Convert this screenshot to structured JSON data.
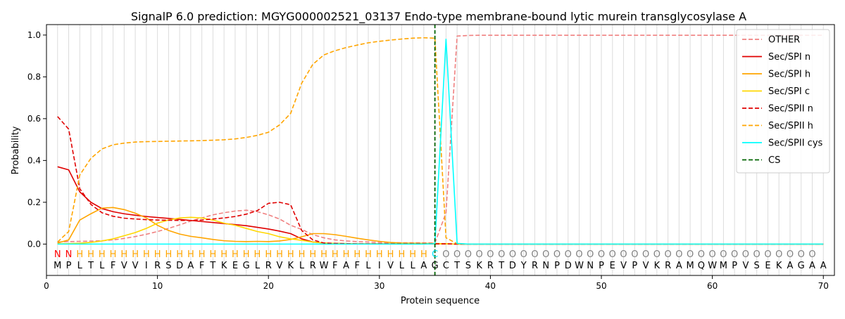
{
  "chart_data": {
    "type": "line",
    "title": "SignalP 6.0 prediction: MGYG000002521_03137 Endo-type membrane-bound lytic murein transglycosylase A",
    "xlabel": "Protein sequence",
    "ylabel": "Probability",
    "xlim": [
      0,
      71
    ],
    "ylim": [
      -0.15,
      1.05
    ],
    "x_ticks": [
      0,
      10,
      20,
      30,
      40,
      50,
      60,
      70
    ],
    "y_ticks": [
      0.0,
      0.2,
      0.4,
      0.6,
      0.8,
      1.0
    ],
    "legend_position": "top-right",
    "vertical_gridlines": "light grey line at each residue position",
    "sequence": "MPLTLFVVIRSDAFTKEGLRVKLRWFAFLIVLLAGCTSKRTDYRNPDWNPEVPVKRAMQWMPVSEKAGAA",
    "region_labels": "NNHHHHHHHHHHHHHHHHHHHHHHHHHHHHHHHHCOOOOOOOOOOOOOOOOOOOOOOOOOOOOOOOOOO",
    "region_label_colors": {
      "N": "#ff0000",
      "H": "#ffa500",
      "C": "#00e5ff",
      "O": "#808080"
    },
    "cleavage_site": 35,
    "series": [
      {
        "name": "OTHER",
        "color": "#f08080",
        "dash": "dashed",
        "values": [
          0.01,
          0.012,
          0.013,
          0.014,
          0.016,
          0.02,
          0.027,
          0.036,
          0.047,
          0.06,
          0.075,
          0.092,
          0.11,
          0.125,
          0.14,
          0.15,
          0.158,
          0.162,
          0.155,
          0.14,
          0.12,
          0.09,
          0.07,
          0.045,
          0.03,
          0.02,
          0.015,
          0.012,
          0.01,
          0.008,
          0.007,
          0.006,
          0.006,
          0.006,
          0.005,
          0.15,
          0.995,
          0.998,
          0.999,
          0.999,
          0.999,
          0.999,
          0.999,
          0.999,
          0.999,
          0.999,
          0.999,
          0.999,
          0.999,
          0.999,
          0.999,
          0.999,
          0.999,
          0.999,
          0.999,
          0.999,
          0.999,
          0.999,
          0.999,
          0.999,
          0.999,
          0.999,
          0.999,
          0.999,
          0.999,
          0.999,
          0.999,
          0.999,
          0.999,
          0.999
        ]
      },
      {
        "name": "Sec/SPI n",
        "color": "#e00000",
        "dash": "solid",
        "values": [
          0.37,
          0.355,
          0.25,
          0.2,
          0.17,
          0.155,
          0.145,
          0.138,
          0.132,
          0.127,
          0.123,
          0.118,
          0.113,
          0.108,
          0.103,
          0.098,
          0.093,
          0.088,
          0.08,
          0.072,
          0.062,
          0.05,
          0.025,
          0.01,
          0.005,
          0.003,
          0.002,
          0.001,
          0.001,
          0.001,
          0.001,
          0.001,
          0.001,
          0.001,
          0.001,
          0.001,
          0.0,
          0.0,
          0.0,
          0.0,
          0.0,
          0.0,
          0.0,
          0.0,
          0.0,
          0.0,
          0.0,
          0.0,
          0.0,
          0.0,
          0.0,
          0.0,
          0.0,
          0.0,
          0.0,
          0.0,
          0.0,
          0.0,
          0.0,
          0.0,
          0.0,
          0.0,
          0.0,
          0.0,
          0.0,
          0.0,
          0.0,
          0.0,
          0.0,
          0.0
        ]
      },
      {
        "name": "Sec/SPI h",
        "color": "#ffa500",
        "dash": "solid",
        "values": [
          0.005,
          0.02,
          0.115,
          0.145,
          0.172,
          0.175,
          0.165,
          0.148,
          0.125,
          0.09,
          0.065,
          0.048,
          0.037,
          0.03,
          0.022,
          0.016,
          0.013,
          0.012,
          0.013,
          0.012,
          0.015,
          0.022,
          0.035,
          0.05,
          0.05,
          0.045,
          0.037,
          0.028,
          0.02,
          0.013,
          0.008,
          0.005,
          0.004,
          0.003,
          0.003,
          0.001,
          0.0,
          0.0,
          0.0,
          0.0,
          0.0,
          0.0,
          0.0,
          0.0,
          0.0,
          0.0,
          0.0,
          0.0,
          0.0,
          0.0,
          0.0,
          0.0,
          0.0,
          0.0,
          0.0,
          0.0,
          0.0,
          0.0,
          0.0,
          0.0,
          0.0,
          0.0,
          0.0,
          0.0,
          0.0,
          0.0,
          0.0,
          0.0,
          0.0,
          0.0
        ]
      },
      {
        "name": "Sec/SPI c",
        "color": "#ffd700",
        "dash": "solid",
        "values": [
          0.001,
          0.002,
          0.004,
          0.008,
          0.015,
          0.025,
          0.04,
          0.055,
          0.075,
          0.1,
          0.115,
          0.125,
          0.128,
          0.125,
          0.115,
          0.1,
          0.09,
          0.075,
          0.06,
          0.05,
          0.035,
          0.025,
          0.018,
          0.01,
          0.005,
          0.003,
          0.002,
          0.001,
          0.001,
          0.001,
          0.001,
          0.001,
          0.001,
          0.001,
          0.001,
          0.001,
          0.0,
          0.0,
          0.0,
          0.0,
          0.0,
          0.0,
          0.0,
          0.0,
          0.0,
          0.0,
          0.0,
          0.0,
          0.0,
          0.0,
          0.0,
          0.0,
          0.0,
          0.0,
          0.0,
          0.0,
          0.0,
          0.0,
          0.0,
          0.0,
          0.0,
          0.0,
          0.0,
          0.0,
          0.0,
          0.0,
          0.0,
          0.0,
          0.0,
          0.0
        ]
      },
      {
        "name": "Sec/SPII n",
        "color": "#e00000",
        "dash": "dashed",
        "values": [
          0.61,
          0.55,
          0.265,
          0.19,
          0.15,
          0.133,
          0.124,
          0.12,
          0.117,
          0.115,
          0.114,
          0.113,
          0.113,
          0.115,
          0.12,
          0.125,
          0.132,
          0.143,
          0.16,
          0.195,
          0.2,
          0.188,
          0.065,
          0.02,
          0.005,
          0.003,
          0.002,
          0.001,
          0.001,
          0.001,
          0.001,
          0.001,
          0.001,
          0.001,
          0.001,
          0.001,
          0.0,
          0.0,
          0.0,
          0.0,
          0.0,
          0.0,
          0.0,
          0.0,
          0.0,
          0.0,
          0.0,
          0.0,
          0.0,
          0.0,
          0.0,
          0.0,
          0.0,
          0.0,
          0.0,
          0.0,
          0.0,
          0.0,
          0.0,
          0.0,
          0.0,
          0.0,
          0.0,
          0.0,
          0.0,
          0.0,
          0.0,
          0.0,
          0.0,
          0.0
        ]
      },
      {
        "name": "Sec/SPII h",
        "color": "#ffa500",
        "dash": "dashed",
        "values": [
          0.01,
          0.06,
          0.33,
          0.41,
          0.455,
          0.475,
          0.483,
          0.488,
          0.49,
          0.491,
          0.492,
          0.493,
          0.494,
          0.495,
          0.497,
          0.499,
          0.503,
          0.51,
          0.52,
          0.535,
          0.57,
          0.625,
          0.77,
          0.86,
          0.905,
          0.925,
          0.94,
          0.952,
          0.963,
          0.97,
          0.976,
          0.981,
          0.985,
          0.987,
          0.985,
          0.03,
          0.002,
          0.0,
          0.0,
          0.0,
          0.0,
          0.0,
          0.0,
          0.0,
          0.0,
          0.0,
          0.0,
          0.0,
          0.0,
          0.0,
          0.0,
          0.0,
          0.0,
          0.0,
          0.0,
          0.0,
          0.0,
          0.0,
          0.0,
          0.0,
          0.0,
          0.0,
          0.0,
          0.0,
          0.0,
          0.0,
          0.0,
          0.0,
          0.0,
          0.0
        ]
      },
      {
        "name": "Sec/SPII cys",
        "color": "#00ffff",
        "dash": "solid",
        "values": [
          0.0,
          0.0,
          0.0,
          0.0,
          0.0,
          0.0,
          0.0,
          0.0,
          0.0,
          0.0,
          0.0,
          0.0,
          0.0,
          0.0,
          0.0,
          0.0,
          0.0,
          0.0,
          0.0,
          0.0,
          0.0,
          0.0,
          0.0,
          0.0,
          0.0,
          0.0,
          0.0,
          0.0,
          0.0,
          0.0,
          0.0,
          0.0,
          0.0,
          0.0,
          0.002,
          0.98,
          0.003,
          0.0,
          0.0,
          0.0,
          0.0,
          0.0,
          0.0,
          0.0,
          0.0,
          0.0,
          0.0,
          0.0,
          0.0,
          0.0,
          0.0,
          0.0,
          0.0,
          0.0,
          0.0,
          0.0,
          0.0,
          0.0,
          0.0,
          0.0,
          0.0,
          0.0,
          0.0,
          0.0,
          0.0,
          0.0,
          0.0,
          0.0,
          0.0,
          0.0
        ]
      }
    ],
    "cs_series": {
      "name": "CS",
      "color": "#006400",
      "dash": "dashed"
    }
  }
}
